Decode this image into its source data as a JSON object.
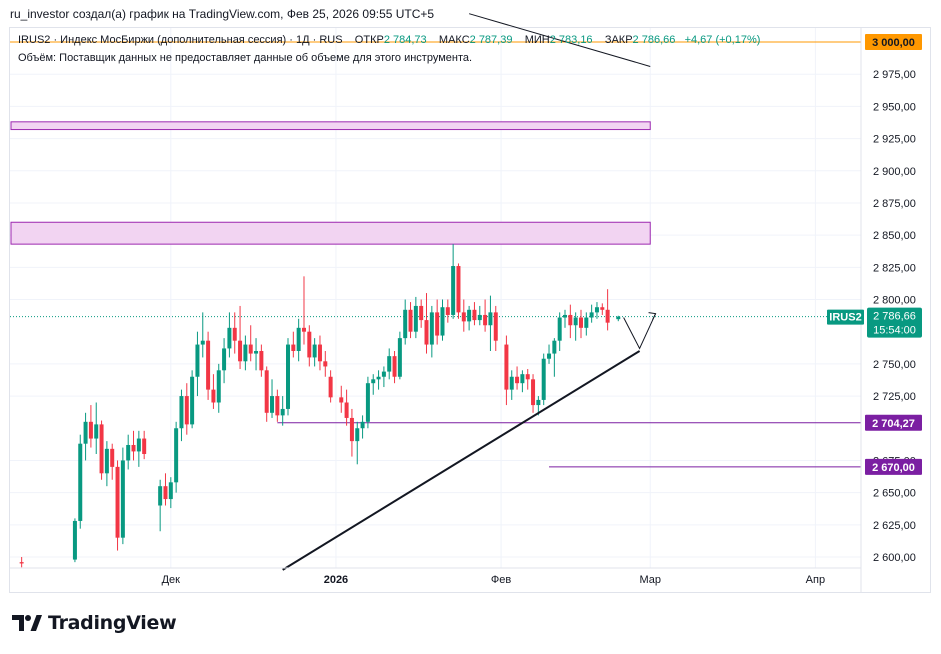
{
  "header": {
    "text": "ru_investor создал(а) график на TradingView.com, Фев 25, 2026 09:55 UTC+5"
  },
  "legend": {
    "symbol_desc": "IRUS2 · Индекс МосБиржи (дополнительная сессия) · 1Д · RUS",
    "open_label": "ОТКР",
    "open_value": "2 784,73",
    "high_label": "МАКС",
    "high_value": "2 787,39",
    "low_label": "МИН",
    "low_value": "2 783,16",
    "close_label": "ЗАКР",
    "close_value": "2 786,66",
    "change": "+4,67 (+0,17%)"
  },
  "volume_note": "Объём: Поставщик данных не предоставляет данные об объеме для этого инструмента.",
  "brand": {
    "name": "TradingView"
  },
  "colors": {
    "up": "#089981",
    "down": "#f23645",
    "zone_fill": "#f2d4f2",
    "zone_border": "#9c27b0",
    "level": "#7b1fa2",
    "resistance": "#ff9800"
  },
  "chart_data": {
    "type": "candlestick",
    "symbol": "IRUS2",
    "interval": "1Д",
    "ylim": [
      2590,
      3000
    ],
    "y_ticks": [
      "2 975,00",
      "2 950,00",
      "2 925,00",
      "2 900,00",
      "2 875,00",
      "2 850,00",
      "2 825,00",
      "2 800,00",
      "2 750,00",
      "2 725,00",
      "2 675,00",
      "2 650,00",
      "2 625,00",
      "2 600,00"
    ],
    "x_ticks": [
      {
        "label": "Дек",
        "date": "2025-12-01"
      },
      {
        "label": "2026",
        "date": "2026-01-01"
      },
      {
        "label": "Фев",
        "date": "2026-02-01"
      },
      {
        "label": "Мар",
        "date": "2026-03-01"
      },
      {
        "label": "Апр",
        "date": "2026-04-01"
      }
    ],
    "start_date": "2025-11-01",
    "last_price": {
      "label": "IRUS2",
      "value": "2 786,66",
      "time": "15:54:00",
      "price": 2786.66
    },
    "price_labels": [
      {
        "value": "3 000,00",
        "price": 3000,
        "color": "#ff9800",
        "text_color": "#131722"
      },
      {
        "value": "2 704,27",
        "price": 2704.27,
        "color": "#7b1fa2",
        "text_color": "#ffffff"
      },
      {
        "value": "2 670,00",
        "price": 2670,
        "color": "#7b1fa2",
        "text_color": "#ffffff"
      }
    ],
    "zones": [
      {
        "from": 2932,
        "to": 2938,
        "start_date": "2025-11-01",
        "end_date": "2026-03-01"
      },
      {
        "from": 2843,
        "to": 2860,
        "start_date": "2025-11-01",
        "end_date": "2026-03-01"
      }
    ],
    "levels": [
      {
        "price": 2704.27,
        "start_date": "2025-12-21"
      },
      {
        "price": 2670.0,
        "start_date": "2026-02-10"
      }
    ],
    "trendlines": [
      {
        "d1": "2025-12-22",
        "p1": 2590,
        "d2": "2026-02-27",
        "p2": 2760,
        "color": "#131722",
        "width": 2
      },
      {
        "d1": "2026-01-26",
        "p1": 3022,
        "d2": "2026-03-01",
        "p2": 2981,
        "color": "#131722",
        "width": 1
      }
    ],
    "projection": [
      {
        "date": "2026-02-24",
        "price": 2786
      },
      {
        "date": "2026-02-27",
        "price": 2762
      },
      {
        "date": "2026-03-02",
        "price": 2789
      }
    ],
    "candles": [
      {
        "date": "2025-11-03",
        "o": 2596,
        "h": 2600,
        "l": 2592,
        "c": 2595
      },
      {
        "date": "2025-11-13",
        "o": 2598,
        "h": 2630,
        "l": 2596,
        "c": 2628
      },
      {
        "date": "2025-11-14",
        "o": 2628,
        "h": 2695,
        "l": 2622,
        "c": 2688
      },
      {
        "date": "2025-11-15",
        "o": 2688,
        "h": 2712,
        "l": 2675,
        "c": 2705
      },
      {
        "date": "2025-11-16",
        "o": 2705,
        "h": 2718,
        "l": 2685,
        "c": 2692
      },
      {
        "date": "2025-11-17",
        "o": 2692,
        "h": 2720,
        "l": 2680,
        "c": 2703
      },
      {
        "date": "2025-11-18",
        "o": 2703,
        "h": 2706,
        "l": 2660,
        "c": 2665
      },
      {
        "date": "2025-11-19",
        "o": 2665,
        "h": 2690,
        "l": 2655,
        "c": 2684
      },
      {
        "date": "2025-11-20",
        "o": 2684,
        "h": 2688,
        "l": 2660,
        "c": 2670
      },
      {
        "date": "2025-11-21",
        "o": 2670,
        "h": 2675,
        "l": 2605,
        "c": 2615
      },
      {
        "date": "2025-11-22",
        "o": 2615,
        "h": 2685,
        "l": 2610,
        "c": 2675
      },
      {
        "date": "2025-11-23",
        "o": 2675,
        "h": 2695,
        "l": 2668,
        "c": 2687
      },
      {
        "date": "2025-11-24",
        "o": 2687,
        "h": 2698,
        "l": 2675,
        "c": 2682
      },
      {
        "date": "2025-11-25",
        "o": 2682,
        "h": 2698,
        "l": 2670,
        "c": 2692
      },
      {
        "date": "2025-11-26",
        "o": 2692,
        "h": 2698,
        "l": 2676,
        "c": 2680
      },
      {
        "date": "2025-11-29",
        "o": 2640,
        "h": 2660,
        "l": 2620,
        "c": 2655
      },
      {
        "date": "2025-11-30",
        "o": 2655,
        "h": 2665,
        "l": 2640,
        "c": 2645
      },
      {
        "date": "2025-12-01",
        "o": 2645,
        "h": 2662,
        "l": 2638,
        "c": 2658
      },
      {
        "date": "2025-12-02",
        "o": 2658,
        "h": 2705,
        "l": 2650,
        "c": 2700
      },
      {
        "date": "2025-12-03",
        "o": 2700,
        "h": 2730,
        "l": 2690,
        "c": 2725
      },
      {
        "date": "2025-12-04",
        "o": 2725,
        "h": 2735,
        "l": 2695,
        "c": 2703
      },
      {
        "date": "2025-12-05",
        "o": 2703,
        "h": 2745,
        "l": 2700,
        "c": 2740
      },
      {
        "date": "2025-12-06",
        "o": 2740,
        "h": 2775,
        "l": 2725,
        "c": 2765
      },
      {
        "date": "2025-12-07",
        "o": 2765,
        "h": 2790,
        "l": 2755,
        "c": 2768
      },
      {
        "date": "2025-12-08",
        "o": 2768,
        "h": 2775,
        "l": 2722,
        "c": 2730
      },
      {
        "date": "2025-12-09",
        "o": 2730,
        "h": 2742,
        "l": 2715,
        "c": 2720
      },
      {
        "date": "2025-12-10",
        "o": 2720,
        "h": 2750,
        "l": 2712,
        "c": 2745
      },
      {
        "date": "2025-12-11",
        "o": 2745,
        "h": 2770,
        "l": 2735,
        "c": 2762
      },
      {
        "date": "2025-12-12",
        "o": 2762,
        "h": 2790,
        "l": 2755,
        "c": 2778
      },
      {
        "date": "2025-12-13",
        "o": 2778,
        "h": 2790,
        "l": 2758,
        "c": 2768
      },
      {
        "date": "2025-12-14",
        "o": 2768,
        "h": 2795,
        "l": 2746,
        "c": 2752
      },
      {
        "date": "2025-12-15",
        "o": 2752,
        "h": 2772,
        "l": 2745,
        "c": 2765
      },
      {
        "date": "2025-12-16",
        "o": 2765,
        "h": 2780,
        "l": 2752,
        "c": 2758
      },
      {
        "date": "2025-12-17",
        "o": 2758,
        "h": 2770,
        "l": 2745,
        "c": 2760
      },
      {
        "date": "2025-12-18",
        "o": 2760,
        "h": 2765,
        "l": 2740,
        "c": 2745
      },
      {
        "date": "2025-12-19",
        "o": 2745,
        "h": 2748,
        "l": 2705,
        "c": 2712
      },
      {
        "date": "2025-12-20",
        "o": 2712,
        "h": 2738,
        "l": 2708,
        "c": 2725
      },
      {
        "date": "2025-12-21",
        "o": 2725,
        "h": 2730,
        "l": 2705,
        "c": 2710
      },
      {
        "date": "2025-12-22",
        "o": 2710,
        "h": 2725,
        "l": 2702,
        "c": 2715
      },
      {
        "date": "2025-12-23",
        "o": 2715,
        "h": 2770,
        "l": 2710,
        "c": 2765
      },
      {
        "date": "2025-12-24",
        "o": 2765,
        "h": 2775,
        "l": 2755,
        "c": 2760
      },
      {
        "date": "2025-12-25",
        "o": 2760,
        "h": 2785,
        "l": 2752,
        "c": 2778
      },
      {
        "date": "2025-12-26",
        "o": 2778,
        "h": 2818,
        "l": 2765,
        "c": 2775
      },
      {
        "date": "2025-12-27",
        "o": 2775,
        "h": 2780,
        "l": 2748,
        "c": 2755
      },
      {
        "date": "2025-12-28",
        "o": 2755,
        "h": 2770,
        "l": 2748,
        "c": 2765
      },
      {
        "date": "2025-12-29",
        "o": 2765,
        "h": 2772,
        "l": 2745,
        "c": 2752
      },
      {
        "date": "2025-12-30",
        "o": 2752,
        "h": 2760,
        "l": 2740,
        "c": 2748
      },
      {
        "date": "2025-12-31",
        "o": 2740,
        "h": 2745,
        "l": 2720,
        "c": 2724
      },
      {
        "date": "2026-01-02",
        "o": 2724,
        "h": 2733,
        "l": 2712,
        "c": 2720
      },
      {
        "date": "2026-01-03",
        "o": 2720,
        "h": 2730,
        "l": 2702,
        "c": 2708
      },
      {
        "date": "2026-01-04",
        "o": 2708,
        "h": 2715,
        "l": 2678,
        "c": 2690
      },
      {
        "date": "2026-01-05",
        "o": 2690,
        "h": 2705,
        "l": 2672,
        "c": 2700
      },
      {
        "date": "2026-01-06",
        "o": 2700,
        "h": 2710,
        "l": 2692,
        "c": 2705
      },
      {
        "date": "2026-01-07",
        "o": 2705,
        "h": 2740,
        "l": 2700,
        "c": 2735
      },
      {
        "date": "2026-01-08",
        "o": 2735,
        "h": 2742,
        "l": 2726,
        "c": 2738
      },
      {
        "date": "2026-01-09",
        "o": 2738,
        "h": 2745,
        "l": 2730,
        "c": 2740
      },
      {
        "date": "2026-01-10",
        "o": 2740,
        "h": 2748,
        "l": 2732,
        "c": 2744
      },
      {
        "date": "2026-01-11",
        "o": 2744,
        "h": 2762,
        "l": 2738,
        "c": 2756
      },
      {
        "date": "2026-01-12",
        "o": 2756,
        "h": 2760,
        "l": 2735,
        "c": 2740
      },
      {
        "date": "2026-01-13",
        "o": 2740,
        "h": 2775,
        "l": 2738,
        "c": 2770
      },
      {
        "date": "2026-01-14",
        "o": 2770,
        "h": 2800,
        "l": 2765,
        "c": 2792
      },
      {
        "date": "2026-01-15",
        "o": 2792,
        "h": 2798,
        "l": 2770,
        "c": 2775
      },
      {
        "date": "2026-01-16",
        "o": 2775,
        "h": 2802,
        "l": 2770,
        "c": 2795
      },
      {
        "date": "2026-01-17",
        "o": 2795,
        "h": 2800,
        "l": 2778,
        "c": 2784
      },
      {
        "date": "2026-01-18",
        "o": 2784,
        "h": 2805,
        "l": 2758,
        "c": 2765
      },
      {
        "date": "2026-01-19",
        "o": 2765,
        "h": 2795,
        "l": 2755,
        "c": 2790
      },
      {
        "date": "2026-01-20",
        "o": 2790,
        "h": 2800,
        "l": 2765,
        "c": 2772
      },
      {
        "date": "2026-01-21",
        "o": 2772,
        "h": 2800,
        "l": 2768,
        "c": 2794
      },
      {
        "date": "2026-01-22",
        "o": 2794,
        "h": 2800,
        "l": 2782,
        "c": 2788
      },
      {
        "date": "2026-01-23",
        "o": 2788,
        "h": 2843,
        "l": 2785,
        "c": 2826
      },
      {
        "date": "2026-01-24",
        "o": 2826,
        "h": 2828,
        "l": 2785,
        "c": 2790
      },
      {
        "date": "2026-01-25",
        "o": 2790,
        "h": 2800,
        "l": 2775,
        "c": 2783
      },
      {
        "date": "2026-01-26",
        "o": 2783,
        "h": 2795,
        "l": 2776,
        "c": 2792
      },
      {
        "date": "2026-01-27",
        "o": 2792,
        "h": 2798,
        "l": 2780,
        "c": 2784
      },
      {
        "date": "2026-01-28",
        "o": 2784,
        "h": 2795,
        "l": 2780,
        "c": 2788
      },
      {
        "date": "2026-01-29",
        "o": 2788,
        "h": 2800,
        "l": 2775,
        "c": 2780
      },
      {
        "date": "2026-01-30",
        "o": 2780,
        "h": 2803,
        "l": 2760,
        "c": 2790
      },
      {
        "date": "2026-01-31",
        "o": 2790,
        "h": 2795,
        "l": 2760,
        "c": 2768
      },
      {
        "date": "2026-02-02",
        "o": 2765,
        "h": 2772,
        "l": 2718,
        "c": 2730
      },
      {
        "date": "2026-02-03",
        "o": 2730,
        "h": 2745,
        "l": 2722,
        "c": 2740
      },
      {
        "date": "2026-02-04",
        "o": 2740,
        "h": 2748,
        "l": 2730,
        "c": 2735
      },
      {
        "date": "2026-02-05",
        "o": 2735,
        "h": 2745,
        "l": 2728,
        "c": 2742
      },
      {
        "date": "2026-02-06",
        "o": 2742,
        "h": 2746,
        "l": 2730,
        "c": 2738
      },
      {
        "date": "2026-02-07",
        "o": 2738,
        "h": 2742,
        "l": 2712,
        "c": 2718
      },
      {
        "date": "2026-02-08",
        "o": 2718,
        "h": 2725,
        "l": 2710,
        "c": 2722
      },
      {
        "date": "2026-02-09",
        "o": 2722,
        "h": 2758,
        "l": 2718,
        "c": 2754
      },
      {
        "date": "2026-02-10",
        "o": 2754,
        "h": 2765,
        "l": 2750,
        "c": 2758
      },
      {
        "date": "2026-02-11",
        "o": 2758,
        "h": 2770,
        "l": 2740,
        "c": 2768
      },
      {
        "date": "2026-02-12",
        "o": 2768,
        "h": 2790,
        "l": 2760,
        "c": 2786
      },
      {
        "date": "2026-02-13",
        "o": 2786,
        "h": 2792,
        "l": 2778,
        "c": 2788
      },
      {
        "date": "2026-02-14",
        "o": 2788,
        "h": 2796,
        "l": 2770,
        "c": 2780
      },
      {
        "date": "2026-02-15",
        "o": 2780,
        "h": 2790,
        "l": 2768,
        "c": 2786
      },
      {
        "date": "2026-02-16",
        "o": 2786,
        "h": 2792,
        "l": 2770,
        "c": 2778
      },
      {
        "date": "2026-02-17",
        "o": 2778,
        "h": 2790,
        "l": 2772,
        "c": 2786
      },
      {
        "date": "2026-02-18",
        "o": 2786,
        "h": 2796,
        "l": 2782,
        "c": 2790
      },
      {
        "date": "2026-02-19",
        "o": 2790,
        "h": 2798,
        "l": 2785,
        "c": 2794
      },
      {
        "date": "2026-02-20",
        "o": 2794,
        "h": 2797,
        "l": 2788,
        "c": 2792
      },
      {
        "date": "2026-02-21",
        "o": 2792,
        "h": 2808,
        "l": 2776,
        "c": 2782
      },
      {
        "date": "2026-02-23",
        "o": 2784.73,
        "h": 2787.39,
        "l": 2783.16,
        "c": 2786.66
      }
    ]
  }
}
